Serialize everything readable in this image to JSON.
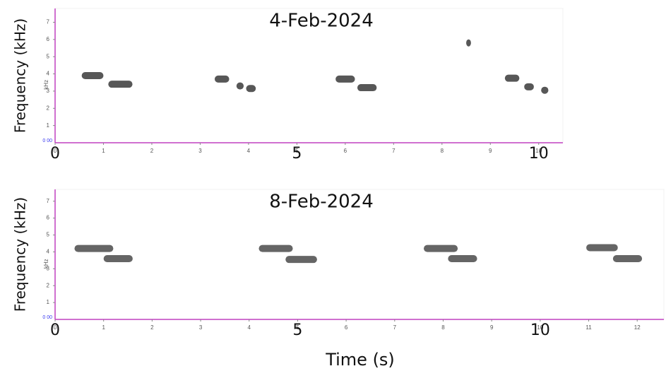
{
  "chart_data": [
    {
      "type": "spectrogram",
      "title": "4-Feb-2024",
      "ylabel": "Frequency (kHz)",
      "y_unit": "kHz",
      "origin_label": "0 00",
      "xlim": [
        0,
        10.5
      ],
      "ylim": [
        0,
        7.8
      ],
      "xticks": [
        0,
        1,
        2,
        3,
        4,
        5,
        6,
        7,
        8,
        9,
        10
      ],
      "xticks_large": [
        0,
        5,
        10
      ],
      "yticks": [
        1,
        2,
        3,
        4,
        5,
        6,
        7
      ],
      "color": "#3a3a3a",
      "axis_color": "#c040c0",
      "notes": {
        "start": [
          0.55,
          1.1,
          3.3,
          3.75,
          3.95,
          5.8,
          6.25,
          8.5,
          9.3,
          9.7,
          10.05
        ],
        "end": [
          1.0,
          1.6,
          3.6,
          3.9,
          4.15,
          6.2,
          6.65,
          8.6,
          9.6,
          9.9,
          10.2
        ],
        "values": [
          3.9,
          3.4,
          3.7,
          3.3,
          3.15,
          3.7,
          3.2,
          5.8,
          3.75,
          3.25,
          3.05
        ]
      }
    },
    {
      "type": "spectrogram",
      "title": "8-Feb-2024",
      "ylabel": "Frequency (kHz)",
      "xlabel": "Time (s)",
      "y_unit": "kHz",
      "origin_label": "0 00",
      "xlim": [
        0,
        12.55
      ],
      "ylim": [
        0,
        7.7
      ],
      "xticks": [
        0,
        1,
        2,
        3,
        4,
        5,
        6,
        7,
        8,
        9,
        10,
        11,
        12
      ],
      "xticks_large": [
        0,
        5,
        10
      ],
      "yticks": [
        1,
        2,
        3,
        4,
        5,
        6,
        7
      ],
      "color": "#4a4a4a",
      "axis_color": "#c040c0",
      "notes": {
        "start": [
          0.4,
          1.0,
          4.2,
          4.75,
          7.6,
          8.1,
          10.95,
          11.5
        ],
        "end": [
          1.2,
          1.6,
          4.9,
          5.4,
          8.3,
          8.7,
          11.6,
          12.1
        ],
        "values": [
          4.2,
          3.6,
          4.2,
          3.55,
          4.2,
          3.6,
          4.25,
          3.6
        ]
      }
    }
  ]
}
